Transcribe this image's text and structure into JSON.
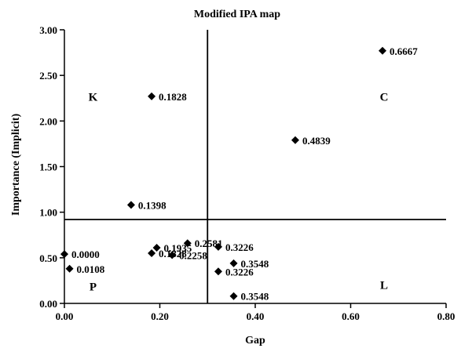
{
  "chart_data": {
    "type": "scatter",
    "title": "Modified IPA map",
    "xlabel": "Gap",
    "ylabel": "Importance (Implicit)",
    "xlim": [
      0,
      0.8
    ],
    "ylim": [
      0,
      3
    ],
    "x_ticks": [
      "0.00",
      "0.20",
      "0.40",
      "0.60",
      "0.80"
    ],
    "x_tick_values": [
      0,
      0.2,
      0.4,
      0.6,
      0.8
    ],
    "y_ticks": [
      "0.00",
      "0.50",
      "1.00",
      "1.50",
      "2.00",
      "2.50",
      "3.00"
    ],
    "y_tick_values": [
      0,
      0.5,
      1,
      1.5,
      2,
      2.5,
      3
    ],
    "threshold_x": 0.3,
    "threshold_y": 0.92,
    "grid": false,
    "marker": "diamond",
    "marker_color": "#000000",
    "quadrant_labels": [
      {
        "text": "K",
        "x": 0.06,
        "y": 2.22
      },
      {
        "text": "C",
        "x": 0.67,
        "y": 2.22
      },
      {
        "text": "P",
        "x": 0.06,
        "y": 0.14
      },
      {
        "text": "L",
        "x": 0.67,
        "y": 0.16
      }
    ],
    "points": [
      {
        "x": 0.6667,
        "y": 2.77,
        "label": "0.6667"
      },
      {
        "x": 0.1828,
        "y": 2.27,
        "label": "0.1828"
      },
      {
        "x": 0.4839,
        "y": 1.79,
        "label": "0.4839"
      },
      {
        "x": 0.1398,
        "y": 1.08,
        "label": "0.1398"
      },
      {
        "x": 0.2581,
        "y": 0.66,
        "label": "0.2581"
      },
      {
        "x": 0.1935,
        "y": 0.61,
        "label": "0.1935"
      },
      {
        "x": 0.3226,
        "y": 0.62,
        "label": "0.3226"
      },
      {
        "x": 0.0,
        "y": 0.54,
        "label": "0.0000"
      },
      {
        "x": 0.1828,
        "y": 0.55,
        "label": "0.1828"
      },
      {
        "x": 0.2258,
        "y": 0.53,
        "label": "0.2258"
      },
      {
        "x": 0.3548,
        "y": 0.44,
        "label": "0.3548"
      },
      {
        "x": 0.0108,
        "y": 0.38,
        "label": "0.0108"
      },
      {
        "x": 0.3226,
        "y": 0.35,
        "label": "0.3226"
      },
      {
        "x": 0.3548,
        "y": 0.08,
        "label": "0.3548"
      }
    ]
  }
}
